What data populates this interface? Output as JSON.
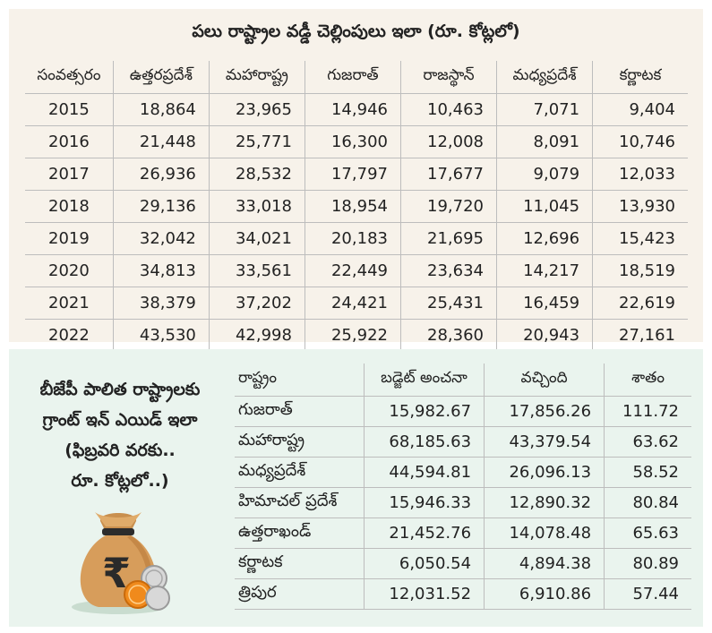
{
  "top": {
    "title": "పలు రాష్ట్రాల వడ్డీ చెల్లింపులు ఇలా (రూ. కోట్లలో)",
    "headers": [
      "సంవత్సరం",
      "ఉత్తరప్రదేశ్",
      "మహారాష్ట్ర",
      "గుజరాత్",
      "రాజస్థాన్",
      "మధ్యప్రదేశ్",
      "కర్ణాటక"
    ],
    "rows": [
      [
        "2015",
        "18,864",
        "23,965",
        "14,946",
        "10,463",
        "7,071",
        "9,404"
      ],
      [
        "2016",
        "21,448",
        "25,771",
        "16,300",
        "12,008",
        "8,091",
        "10,746"
      ],
      [
        "2017",
        "26,936",
        "28,532",
        "17,797",
        "17,677",
        "9,079",
        "12,033"
      ],
      [
        "2018",
        "29,136",
        "33,018",
        "18,954",
        "19,720",
        "11,045",
        "13,930"
      ],
      [
        "2019",
        "32,042",
        "34,021",
        "20,183",
        "21,695",
        "12,696",
        "15,423"
      ],
      [
        "2020",
        "34,813",
        "33,561",
        "22,449",
        "23,634",
        "14,217",
        "18,519"
      ],
      [
        "2021",
        "38,379",
        "37,202",
        "24,421",
        "25,431",
        "16,459",
        "22,619"
      ],
      [
        "2022",
        "43,530",
        "42,998",
        "25,922",
        "28,360",
        "20,943",
        "27,161"
      ]
    ]
  },
  "bottom": {
    "side_note": [
      "బీజేపీ పాలిత రాష్ట్రాలకు",
      "గ్రాంట్ ఇన్ ఎయిడ్ ఇలా",
      "(ఫిబ్రవరి వరకు..",
      "రూ. కోట్లలో..)"
    ],
    "headers": [
      "రాష్ట్రం",
      "బడ్జెట్ అంచనా",
      "వచ్చింది",
      "శాతం"
    ],
    "rows": [
      [
        "గుజరాత్",
        "15,982.67",
        "17,856.26",
        "111.72"
      ],
      [
        "మహారాష్ట్ర",
        "68,185.63",
        "43,379.54",
        "63.62"
      ],
      [
        "మధ్యప్రదేశ్",
        "44,594.81",
        "26,096.13",
        "58.52"
      ],
      [
        "హిమాచల్ ప్రదేశ్",
        "15,946.33",
        "12,890.32",
        "80.84"
      ],
      [
        "ఉత్తరాఖండ్",
        "21,452.76",
        "14,078.48",
        "65.63"
      ],
      [
        "కర్ణాటక",
        "6,050.54",
        "4,894.38",
        "80.89"
      ],
      [
        "త్రిపుర",
        "12,031.52",
        "6,910.86",
        "57.44"
      ]
    ],
    "icon": "money-bag-rupee-icon",
    "bag_symbol": "₹"
  }
}
